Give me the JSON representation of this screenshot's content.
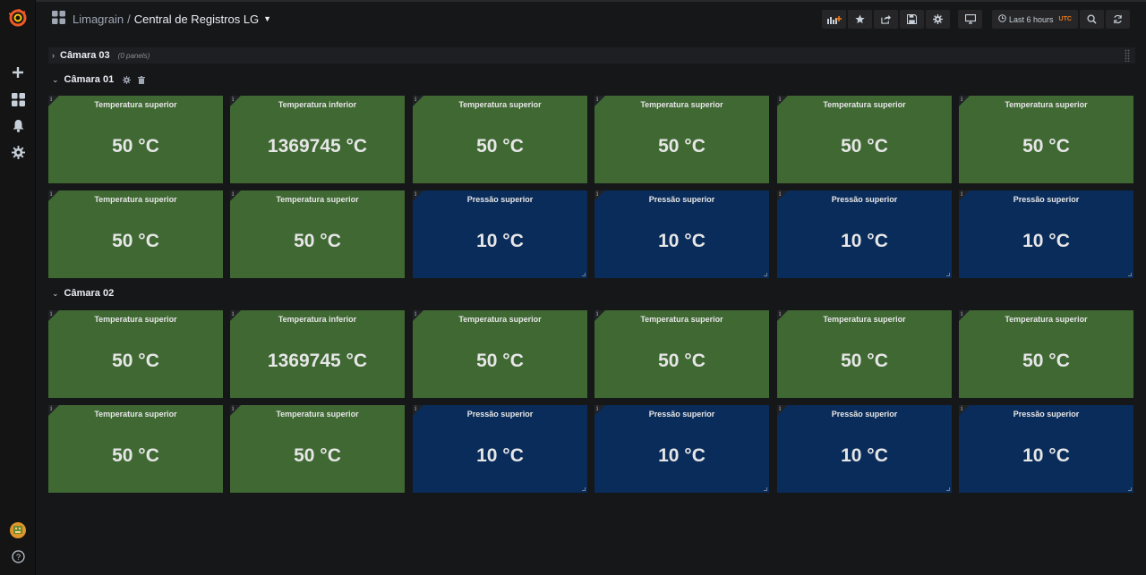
{
  "header": {
    "folder": "Limagrain",
    "separator": "/",
    "title": "Central de Registros LG",
    "time_range": "Last 6 hours",
    "timezone": "UTC"
  },
  "sidebar": {
    "items": [
      "grafana-logo-icon",
      "plus-icon",
      "dashboards-icon",
      "bell-icon",
      "gear-icon",
      "avatar",
      "help-icon"
    ]
  },
  "colors": {
    "green": "#3f6833",
    "blue": "#0a2c5a",
    "accent": "#eb7b18"
  },
  "rows": [
    {
      "title": "Câmara 03",
      "collapsed": true,
      "panel_count": "(0 panels)"
    },
    {
      "title": "Câmara 01",
      "collapsed": false,
      "panels": [
        {
          "title": "Temperatura superior",
          "value": "50 °C",
          "color": "green"
        },
        {
          "title": "Temperatura inferior",
          "value": "1369745 °C",
          "color": "green"
        },
        {
          "title": "Temperatura superior",
          "value": "50 °C",
          "color": "green"
        },
        {
          "title": "Temperatura superior",
          "value": "50 °C",
          "color": "green"
        },
        {
          "title": "Temperatura superior",
          "value": "50 °C",
          "color": "green"
        },
        {
          "title": "Temperatura superior",
          "value": "50 °C",
          "color": "green"
        },
        {
          "title": "Temperatura superior",
          "value": "50 °C",
          "color": "green"
        },
        {
          "title": "Temperatura superior",
          "value": "50 °C",
          "color": "green"
        },
        {
          "title": "Pressão superior",
          "value": "10 °C",
          "color": "blue"
        },
        {
          "title": "Pressão superior",
          "value": "10 °C",
          "color": "blue"
        },
        {
          "title": "Pressão superior",
          "value": "10 °C",
          "color": "blue"
        },
        {
          "title": "Pressão superior",
          "value": "10 °C",
          "color": "blue"
        }
      ]
    },
    {
      "title": "Câmara 02",
      "collapsed": false,
      "panels": [
        {
          "title": "Temperatura superior",
          "value": "50 °C",
          "color": "green"
        },
        {
          "title": "Temperatura inferior",
          "value": "1369745 °C",
          "color": "green"
        },
        {
          "title": "Temperatura superior",
          "value": "50 °C",
          "color": "green"
        },
        {
          "title": "Temperatura superior",
          "value": "50 °C",
          "color": "green"
        },
        {
          "title": "Temperatura superior",
          "value": "50 °C",
          "color": "green"
        },
        {
          "title": "Temperatura superior",
          "value": "50 °C",
          "color": "green"
        },
        {
          "title": "Temperatura superior",
          "value": "50 °C",
          "color": "green"
        },
        {
          "title": "Temperatura superior",
          "value": "50 °C",
          "color": "green"
        },
        {
          "title": "Pressão superior",
          "value": "10 °C",
          "color": "blue"
        },
        {
          "title": "Pressão superior",
          "value": "10 °C",
          "color": "blue"
        },
        {
          "title": "Pressão superior",
          "value": "10 °C",
          "color": "blue"
        },
        {
          "title": "Pressão superior",
          "value": "10 °C",
          "color": "blue"
        }
      ]
    }
  ]
}
